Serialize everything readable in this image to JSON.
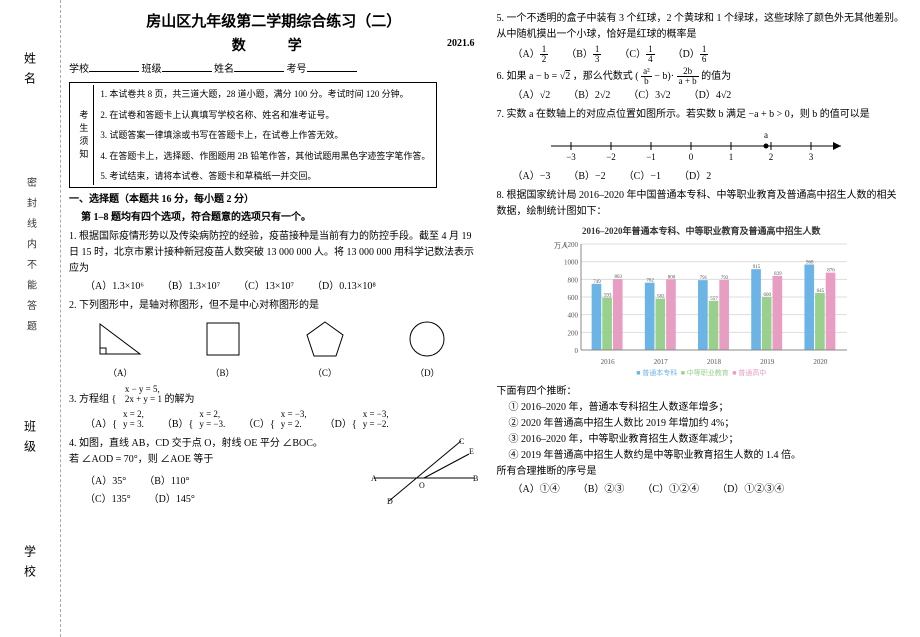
{
  "margin": {
    "labels": [
      "姓名",
      "班级",
      "学校"
    ],
    "note": "密 封 线 内 不 能 答 题"
  },
  "header": {
    "title": "房山区九年级第二学期综合练习（二）",
    "subject": "数　学",
    "date": "2021.6",
    "fields": {
      "school": "学校",
      "class": "班级",
      "name": "姓名",
      "examno": "考号"
    }
  },
  "instructions": {
    "side": "考生须知",
    "items": [
      "1. 本试卷共 8 页，共三道大题，28 道小题，满分 100 分。考试时间 120 分钟。",
      "2. 在试卷和答题卡上认真填写学校名称、姓名和准考证号。",
      "3. 试题答案一律填涂或书写在答题卡上，在试卷上作答无效。",
      "4. 在答题卡上，选择题、作图题用 2B 铅笔作答，其他试题用黑色字迹签字笔作答。",
      "5. 考试结束，请将本试卷、答题卡和草稿纸一并交回。"
    ]
  },
  "section1": {
    "title": "一、选择题（本题共 16 分，每小题 2 分）",
    "sub": "第 1–8 题均有四个选项，符合题意的选项只有一个。"
  },
  "q1": {
    "text": "1. 根据国际疫情形势以及传染病防控的经验，疫苗接种是当前有力的防控手段。截至 4 月 19 日 15 时，北京市累计接种新冠疫苗人数突破 13 000 000 人。将 13 000 000 用科学记数法表示应为",
    "opts": {
      "A": "1.3×10⁶",
      "B": "1.3×10⁷",
      "C": "13×10⁷",
      "D": "0.13×10⁸"
    }
  },
  "q2": {
    "text": "2. 下列图形中，是轴对称图形，但不是中心对称图形的是",
    "labels": {
      "A": "（A）",
      "B": "（B）",
      "C": "（C）",
      "D": "（D）"
    }
  },
  "q3": {
    "text": "3. 方程组",
    "eq1": "x − y = 5,",
    "eq2": "2x + y = 1",
    "tail": "的解为",
    "opts": {
      "A": {
        "l1": "x = 2,",
        "l2": "y = 3."
      },
      "B": {
        "l1": "x = 2,",
        "l2": "y = −3."
      },
      "C": {
        "l1": "x = −3,",
        "l2": "y = 2."
      },
      "D": {
        "l1": "x = −3,",
        "l2": "y = −2."
      }
    }
  },
  "q4": {
    "text": "4. 如图，直线 AB，CD 交于点 O，射线 OE 平分 ∠BOC。",
    "text2": "若 ∠AOD = 70°，则 ∠AOE 等于",
    "opts": {
      "A": "35°",
      "B": "110°",
      "C": "135°",
      "D": "145°"
    }
  },
  "q5": {
    "text": "5. 一个不透明的盒子中装有 3 个红球，2 个黄球和 1 个绿球，这些球除了颜色外无其他差别。从中随机摸出一个小球，恰好是红球的概率是",
    "opts": {
      "A_n": "1",
      "A_d": "2",
      "B_n": "1",
      "B_d": "3",
      "C_n": "1",
      "C_d": "4",
      "D_n": "1",
      "D_d": "6"
    }
  },
  "q6": {
    "pre": "6. 如果 a − b = ",
    "root": "2",
    "mid": "，那么代数式 (",
    "num1": "a²",
    "den1": "b",
    "sub1": "− b)·",
    "num2": "2b",
    "den2": "a + b",
    "post": " 的值为",
    "opts": {
      "A": "√2",
      "B": "2√2",
      "C": "3√2",
      "D": "4√2"
    }
  },
  "q7": {
    "text": "7. 实数 a 在数轴上的对应点位置如图所示。若实数 b 满足 −a + b > 0，则 b 的值可以是",
    "axis": {
      "ticks": [
        "−3",
        "−2",
        "−1",
        "0",
        "1",
        "2",
        "3"
      ],
      "a_label": "a",
      "arrow": "→"
    },
    "opts": {
      "A": "−3",
      "B": "−2",
      "C": "−1",
      "D": "2"
    }
  },
  "q8": {
    "text": "8. 根据国家统计局 2016–2020 年中国普通本专科、中等职业教育及普通高中招生人数的相关数据，绘制统计图如下：",
    "chart": {
      "title": "2016–2020年普通本专科、中等职业教育及普通高中招生人数",
      "ylabel": "万人",
      "ymax": 1200,
      "ystep": 200,
      "years": [
        "2016",
        "2017",
        "2018",
        "2019",
        "2020"
      ],
      "series": {
        "s1": {
          "name": "普通本专科",
          "color": "#6db4e6",
          "vals": [
            749,
            762,
            791,
            915,
            968
          ]
        },
        "s2": {
          "name": "中等职业教育",
          "color": "#9ad08e",
          "vals": [
            593,
            582,
            557,
            600,
            645
          ]
        },
        "s3": {
          "name": "普通高中",
          "color": "#e89ec2",
          "vals": [
            803,
            800,
            793,
            839,
            876
          ]
        }
      },
      "bg": "#fdfdfd",
      "grid": "#ddd",
      "text": "#555"
    },
    "infer_pre": "下面有四个推断：",
    "inf1": "① 2016–2020 年，普通本专科招生人数逐年增多；",
    "inf2": "② 2020 年普通高中招生人数比 2019 年增加约 4%；",
    "inf3": "③ 2016–2020 年，中等职业教育招生人数逐年减少；",
    "inf4": "④ 2019 年普通高中招生人数约是中等职业教育招生人数的 1.4 倍。",
    "ask": "所有合理推断的序号是",
    "opts": {
      "A": "①④",
      "B": "②③",
      "C": "①②④",
      "D": "①②③④"
    }
  }
}
